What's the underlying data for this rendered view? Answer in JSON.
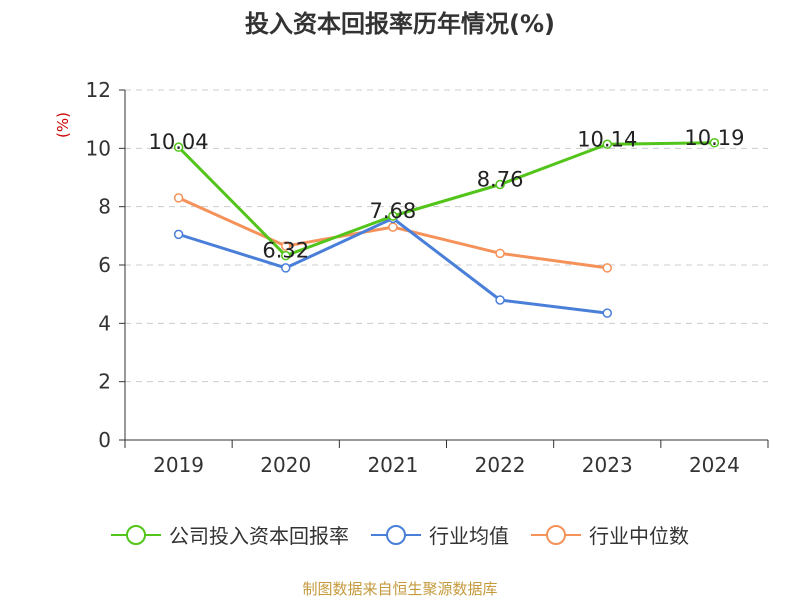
{
  "chart_data": {
    "type": "line",
    "title": "投入资本回报率历年情况(%)",
    "ylabel": "(%)",
    "ylim": [
      0,
      12
    ],
    "yticks": [
      0,
      2,
      4,
      6,
      8,
      10,
      12
    ],
    "categories": [
      "2019",
      "2020",
      "2021",
      "2022",
      "2023",
      "2024"
    ],
    "grid": "horizontal dashed",
    "legend_position": "bottom",
    "series": [
      {
        "name": "公司投入资本回报率",
        "color": "#52c41a",
        "values": [
          10.04,
          6.32,
          7.68,
          8.76,
          10.14,
          10.19
        ],
        "labels": [
          "10.04",
          "6.32",
          "7.68",
          "8.76",
          "10.14",
          "10.19"
        ]
      },
      {
        "name": "行业均值",
        "color": "#4a7fd9",
        "values": [
          7.05,
          5.9,
          7.6,
          4.8,
          4.35,
          null
        ]
      },
      {
        "name": "行业中位数",
        "color": "#f5925a",
        "values": [
          8.3,
          6.65,
          7.3,
          6.4,
          5.9,
          null
        ]
      }
    ],
    "ylabel_color": "#cc0000"
  },
  "source": {
    "text": "制图数据来自恒生聚源数据库",
    "color": "#c49a3c"
  }
}
